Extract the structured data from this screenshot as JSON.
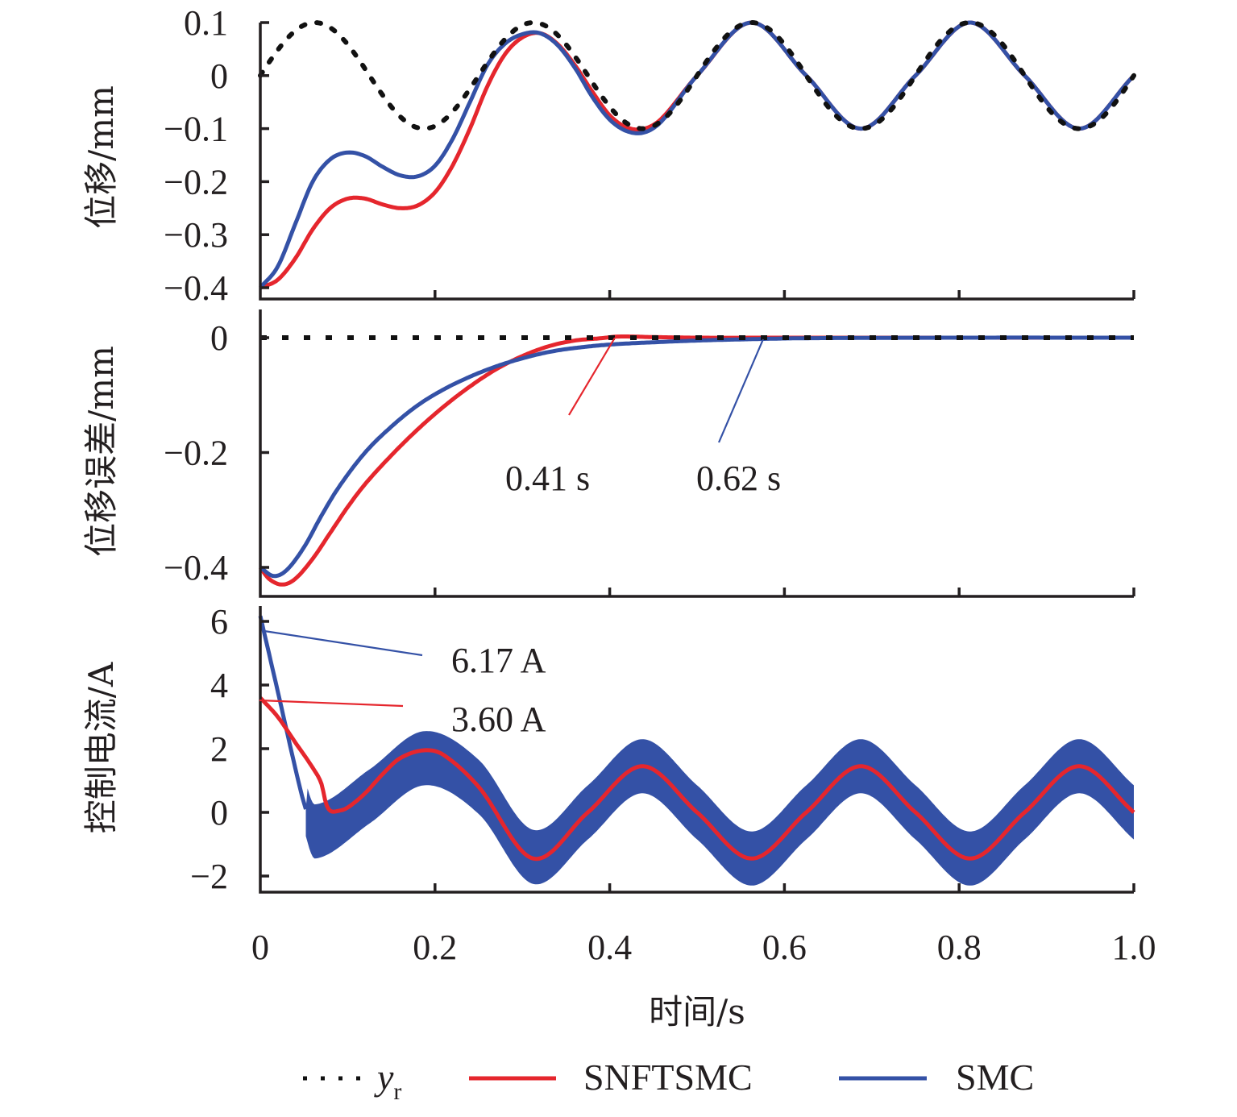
{
  "colors": {
    "reference": "#111111",
    "snftsmc": "#e5262d",
    "smc": "#3451a6",
    "axis": "#231f20"
  },
  "chart_data": [
    {
      "id": "displacement",
      "type": "line",
      "title": "",
      "xlabel": "时间/s",
      "ylabel": "位移/mm",
      "xlim": [
        0,
        1.0
      ],
      "ylim": [
        -0.4,
        0.1
      ],
      "xticks": [
        0,
        0.2,
        0.4,
        0.6,
        0.8,
        1.0
      ],
      "yticks": [
        0.1,
        0,
        -0.1,
        -0.2,
        -0.3,
        -0.4
      ],
      "ytick_labels": [
        "0.1",
        "0",
        "−0.1",
        "−0.2",
        "−0.3",
        "−0.4"
      ],
      "grid": false,
      "series": [
        {
          "name": "yr",
          "style": "dotted",
          "x": [
            0,
            0.0625,
            0.125,
            0.1875,
            0.25,
            0.3125,
            0.375,
            0.4375,
            0.5,
            0.5625,
            0.625,
            0.6875,
            0.75,
            0.8125,
            0.875,
            0.9375,
            1.0
          ],
          "y": [
            0,
            0.1,
            0,
            -0.1,
            0,
            0.1,
            0,
            -0.1,
            0,
            0.1,
            0,
            -0.1,
            0,
            0.1,
            0,
            -0.1,
            0
          ],
          "formula": "0.1*sin(8*pi*t)"
        },
        {
          "name": "SNFTSMC",
          "x": [
            0,
            0.02,
            0.04,
            0.06,
            0.08,
            0.1,
            0.12,
            0.14,
            0.16,
            0.18,
            0.2,
            0.22,
            0.24,
            0.26,
            0.28,
            0.3,
            0.32,
            0.34,
            0.36,
            0.38,
            0.4,
            0.42,
            0.44,
            0.46,
            0.5,
            0.5625,
            0.625,
            0.6875,
            0.75,
            0.8125,
            0.875,
            0.9375,
            1.0
          ],
          "y": [
            -0.4,
            -0.385,
            -0.345,
            -0.29,
            -0.25,
            -0.232,
            -0.232,
            -0.243,
            -0.25,
            -0.245,
            -0.22,
            -0.17,
            -0.1,
            -0.02,
            0.04,
            0.072,
            0.08,
            0.06,
            0.02,
            -0.03,
            -0.075,
            -0.098,
            -0.1,
            -0.08,
            0,
            0.1,
            0,
            -0.1,
            0,
            0.1,
            0,
            -0.1,
            0
          ]
        },
        {
          "name": "SMC",
          "x": [
            0,
            0.02,
            0.04,
            0.06,
            0.08,
            0.1,
            0.12,
            0.14,
            0.16,
            0.18,
            0.2,
            0.22,
            0.24,
            0.26,
            0.28,
            0.3,
            0.32,
            0.34,
            0.36,
            0.38,
            0.4,
            0.42,
            0.44,
            0.46,
            0.5,
            0.5625,
            0.625,
            0.6875,
            0.75,
            0.8125,
            0.875,
            0.9375,
            1.0
          ],
          "y": [
            -0.4,
            -0.36,
            -0.28,
            -0.2,
            -0.158,
            -0.145,
            -0.152,
            -0.172,
            -0.188,
            -0.19,
            -0.17,
            -0.12,
            -0.05,
            0.02,
            0.06,
            0.078,
            0.08,
            0.058,
            0.015,
            -0.04,
            -0.083,
            -0.105,
            -0.107,
            -0.085,
            0,
            0.1,
            0,
            -0.1,
            0,
            0.1,
            0,
            -0.1,
            0
          ]
        }
      ]
    },
    {
      "id": "displacement-error",
      "type": "line",
      "xlabel": "时间/s",
      "ylabel": "位移误差/mm",
      "xlim": [
        0,
        1.0
      ],
      "ylim": [
        -0.45,
        0.05
      ],
      "yticks": [
        0,
        -0.2,
        -0.4
      ],
      "ytick_labels": [
        "0",
        "−0.2",
        "−0.4"
      ],
      "grid": false,
      "series": [
        {
          "name": "yr",
          "style": "dotted",
          "x": [
            0,
            1.0
          ],
          "y": [
            0,
            0
          ]
        },
        {
          "name": "SNFTSMC",
          "x": [
            0,
            0.01,
            0.025,
            0.04,
            0.06,
            0.08,
            0.1,
            0.12,
            0.15,
            0.18,
            0.21,
            0.24,
            0.27,
            0.3,
            0.33,
            0.36,
            0.39,
            0.41,
            0.45,
            0.5,
            0.6,
            0.8,
            1.0
          ],
          "y": [
            -0.4,
            -0.42,
            -0.43,
            -0.42,
            -0.385,
            -0.34,
            -0.295,
            -0.255,
            -0.205,
            -0.16,
            -0.12,
            -0.085,
            -0.055,
            -0.032,
            -0.015,
            -0.005,
            -0.001,
            0.002,
            0.001,
            0,
            0,
            0,
            0
          ]
        },
        {
          "name": "SMC",
          "x": [
            0,
            0.015,
            0.03,
            0.05,
            0.07,
            0.09,
            0.12,
            0.15,
            0.18,
            0.21,
            0.24,
            0.27,
            0.3,
            0.33,
            0.36,
            0.4,
            0.45,
            0.5,
            0.55,
            0.62,
            0.8,
            1.0
          ],
          "y": [
            -0.4,
            -0.415,
            -0.405,
            -0.365,
            -0.31,
            -0.26,
            -0.2,
            -0.155,
            -0.118,
            -0.09,
            -0.068,
            -0.05,
            -0.036,
            -0.025,
            -0.018,
            -0.012,
            -0.008,
            -0.005,
            -0.003,
            -0.001,
            0,
            0
          ]
        }
      ],
      "annotations": [
        {
          "text": "0.41 s",
          "series": "SNFTSMC",
          "x": 0.41
        },
        {
          "text": "0.62 s",
          "series": "SMC",
          "x": 0.62
        }
      ]
    },
    {
      "id": "control-current",
      "type": "line",
      "xlabel": "时间/s",
      "ylabel": "控制电流/A",
      "xlim": [
        0,
        1.0
      ],
      "ylim": [
        -2.5,
        6.5
      ],
      "yticks": [
        6,
        4,
        2,
        0,
        -2
      ],
      "ytick_labels": [
        "6",
        "4",
        "2",
        "0",
        "−2"
      ],
      "grid": false,
      "series": [
        {
          "name": "SNFTSMC",
          "x": [
            0,
            0.02,
            0.04,
            0.06,
            0.07,
            0.075,
            0.08,
            0.09,
            0.1,
            0.12,
            0.14,
            0.16,
            0.1875,
            0.21,
            0.25,
            0.3125,
            0.375,
            0.4375,
            0.5,
            0.5625,
            0.625,
            0.6875,
            0.75,
            0.8125,
            0.875,
            0.9375,
            1.0
          ],
          "y": [
            3.6,
            3.0,
            2.2,
            1.4,
            0.9,
            0.3,
            0.05,
            0.05,
            0.15,
            0.6,
            1.2,
            1.7,
            1.95,
            1.8,
            0.8,
            -1.45,
            0,
            1.45,
            0,
            -1.45,
            0,
            1.45,
            0,
            -1.45,
            0,
            1.45,
            0
          ]
        },
        {
          "name": "SMC",
          "style": "chattering band",
          "x": [
            0,
            0.02,
            0.04,
            0.05,
            0.0625,
            0.125,
            0.1875,
            0.25,
            0.3125,
            0.375,
            0.4375,
            0.5,
            0.5625,
            0.625,
            0.6875,
            0.75,
            0.8125,
            0.875,
            0.9375,
            1.0
          ],
          "center": [
            6.17,
            3.8,
            1.4,
            0.3,
            -0.6,
            0.5,
            1.7,
            0.8,
            -1.4,
            0,
            1.45,
            0,
            -1.45,
            0,
            1.45,
            0,
            -1.45,
            0,
            1.45,
            0
          ],
          "band_half_width": 0.85
        }
      ],
      "annotations": [
        {
          "text": "6.17 A",
          "series": "SMC",
          "x": 0,
          "y": 6.17
        },
        {
          "text": "3.60 A",
          "series": "SNFTSMC",
          "x": 0,
          "y": 3.6
        }
      ]
    }
  ],
  "xaxis": {
    "label": "时间/s",
    "ticks": [
      "0",
      "0.2",
      "0.4",
      "0.6",
      "0.8",
      "1.0"
    ]
  },
  "legend": {
    "placement": "bottom-center",
    "items": [
      {
        "label": "y",
        "subscript": "r",
        "style": "dotted"
      },
      {
        "label": "SNFTSMC",
        "style": "solid"
      },
      {
        "label": "SMC",
        "style": "solid"
      }
    ]
  }
}
